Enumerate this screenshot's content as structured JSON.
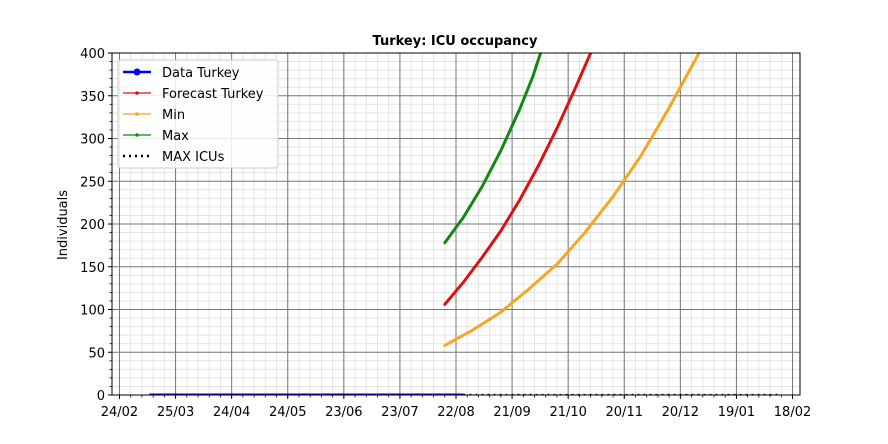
{
  "chart_data": {
    "type": "line",
    "title": "Turkey: ICU occupancy",
    "xlabel": "",
    "ylabel": "Individuals",
    "x_axis": {
      "type": "date",
      "range": [
        "2020-02-20",
        "2021-02-22"
      ],
      "tick_labels": [
        "24/02",
        "25/03",
        "24/04",
        "24/05",
        "23/06",
        "23/07",
        "22/08",
        "21/09",
        "21/10",
        "20/11",
        "20/12",
        "19/01",
        "18/02"
      ],
      "tick_dates": [
        "2020-02-24",
        "2020-03-25",
        "2020-04-24",
        "2020-05-24",
        "2020-06-23",
        "2020-07-23",
        "2020-08-22",
        "2020-09-21",
        "2020-10-21",
        "2020-11-20",
        "2020-12-20",
        "2021-01-19",
        "2021-02-18"
      ]
    },
    "y_axis": {
      "range": [
        0,
        400
      ],
      "ticks": [
        0,
        50,
        100,
        150,
        200,
        250,
        300,
        350,
        400
      ]
    },
    "grid": true,
    "legend_position": "top-left",
    "series": [
      {
        "name": "Data Turkey",
        "color": "#0000ff",
        "style": "line-marker",
        "points": [
          [
            "2020-03-11",
            0
          ],
          [
            "2020-04-15",
            0
          ],
          [
            "2020-05-20",
            0
          ],
          [
            "2020-06-25",
            0
          ],
          [
            "2020-07-30",
            0
          ],
          [
            "2020-08-26",
            0
          ]
        ]
      },
      {
        "name": "Forecast Turkey",
        "color": "#dd1111",
        "style": "line",
        "points": [
          [
            "2020-08-16",
            106
          ],
          [
            "2020-08-26",
            132
          ],
          [
            "2020-09-05",
            161
          ],
          [
            "2020-09-15",
            192
          ],
          [
            "2020-09-25",
            228
          ],
          [
            "2020-10-05",
            268
          ],
          [
            "2020-10-15",
            312
          ],
          [
            "2020-10-25",
            360
          ],
          [
            "2020-11-03",
            405
          ]
        ]
      },
      {
        "name": "Min",
        "color": "#f5a623",
        "style": "line",
        "points": [
          [
            "2020-08-16",
            58
          ],
          [
            "2020-08-31",
            76
          ],
          [
            "2020-09-15",
            97
          ],
          [
            "2020-09-30",
            124
          ],
          [
            "2020-10-15",
            153
          ],
          [
            "2020-10-30",
            190
          ],
          [
            "2020-11-14",
            232
          ],
          [
            "2020-11-29",
            280
          ],
          [
            "2020-12-14",
            336
          ],
          [
            "2020-12-29",
            396
          ],
          [
            "2020-12-31",
            405
          ]
        ]
      },
      {
        "name": "Max",
        "color": "#118811",
        "style": "line",
        "points": [
          [
            "2020-08-16",
            178
          ],
          [
            "2020-08-26",
            208
          ],
          [
            "2020-09-05",
            244
          ],
          [
            "2020-09-15",
            286
          ],
          [
            "2020-09-25",
            334
          ],
          [
            "2020-10-02",
            372
          ],
          [
            "2020-10-07",
            405
          ]
        ]
      },
      {
        "name": "MAX ICUs",
        "color": "#000000",
        "style": "dotted",
        "points": [
          [
            "2020-08-26",
            0
          ],
          [
            "2021-02-12",
            0
          ]
        ]
      }
    ]
  }
}
